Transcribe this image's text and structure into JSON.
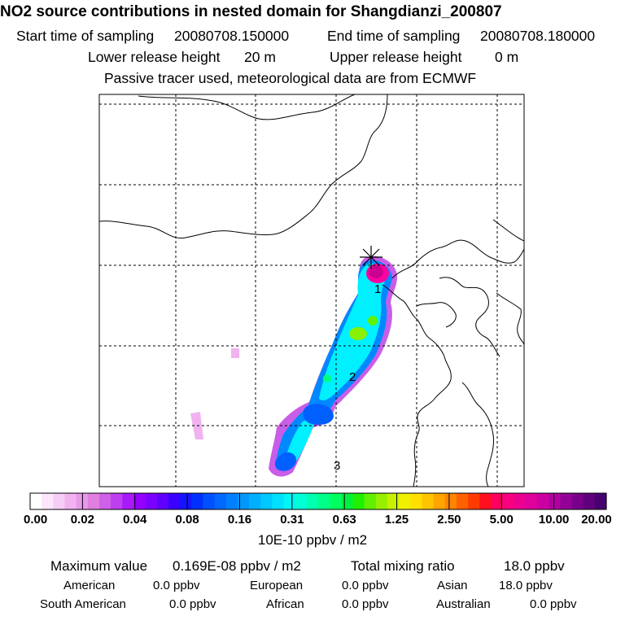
{
  "header": {
    "title": "NO2 source contributions in nested domain for Shangdianzi_200807",
    "start_label": "Start time of sampling",
    "start_value": "20080708.150000",
    "end_label": "End time of sampling",
    "end_value": "20080708.180000",
    "lower_label": "Lower release height",
    "lower_value": "20 m",
    "upper_label": "Upper release height",
    "upper_value": "0 m",
    "note": "Passive tracer used, meteorological data are from ECMWF"
  },
  "map": {
    "trajectory_labels": [
      "1",
      "2",
      "3"
    ]
  },
  "legend": {
    "ticks": [
      "0.00",
      "0.02",
      "0.04",
      "0.08",
      "0.16",
      "0.31",
      "0.63",
      "1.25",
      "2.50",
      "5.00",
      "10.00",
      "20.00"
    ],
    "units": "10E-10 ppbv / m2",
    "colors": [
      "#ffffff",
      "#fbe6fb",
      "#f6cdf6",
      "#f0b3f0",
      "#e999e9",
      "#e07fe0",
      "#d060e8",
      "#bd3ff0",
      "#a91af8",
      "#9400ff",
      "#7c00ff",
      "#5f00ff",
      "#3a00ff",
      "#1414ff",
      "#0030ff",
      "#0050ff",
      "#0068ff",
      "#0080ff",
      "#0098ff",
      "#00b0ff",
      "#00c8ff",
      "#00e0ff",
      "#00f5f5",
      "#00ffd8",
      "#00ffb0",
      "#00ff88",
      "#00ff60",
      "#00f040",
      "#20f000",
      "#60f000",
      "#98f000",
      "#c8f000",
      "#f0f000",
      "#ffe000",
      "#ffc400",
      "#ffa400",
      "#ff8400",
      "#ff6000",
      "#ff3c00",
      "#ff1020",
      "#ff0060",
      "#f80080",
      "#ec0090",
      "#e0009c",
      "#cc00a0",
      "#b000a0",
      "#940096",
      "#78008a",
      "#60007c",
      "#480070"
    ]
  },
  "stats": {
    "max_label": "Maximum value",
    "max_value": "0.169E-08 ppbv / m2",
    "total_label": "Total mixing ratio",
    "total_value": "18.0 ppbv",
    "american_label": "American",
    "american_value": "0.0 ppbv",
    "european_label": "European",
    "european_value": "0.0 ppbv",
    "asian_label": "Asian",
    "asian_value": "18.0 ppbv",
    "south_american_label": "South American",
    "south_american_value": "0.0 ppbv",
    "african_label": "African",
    "african_value": "0.0 ppbv",
    "australian_label": "Australian",
    "australian_value": "0.0 ppbv"
  }
}
